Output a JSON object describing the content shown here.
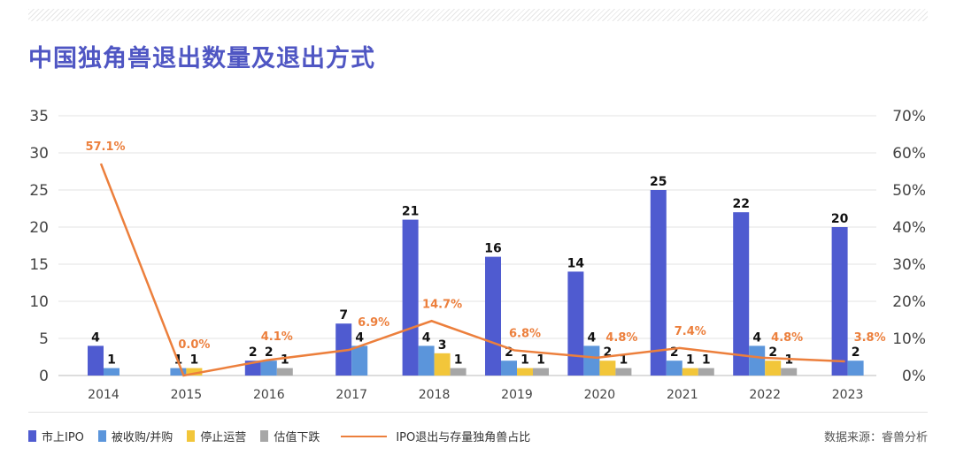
{
  "title": "中国独角兽退出数量及退出方式",
  "source": "数据来源：睿兽分析",
  "chart_data": {
    "type": "bar+line",
    "title": "中国独角兽退出数量及退出方式",
    "categories": [
      "2014",
      "2015",
      "2016",
      "2017",
      "2018",
      "2019",
      "2020",
      "2021",
      "2022",
      "2023"
    ],
    "series": [
      {
        "name": "市上IPO",
        "color": "#4f5bd0",
        "values": [
          4,
          0,
          2,
          7,
          21,
          16,
          14,
          25,
          22,
          20
        ]
      },
      {
        "name": "被收购/并购",
        "color": "#5b95db",
        "values": [
          1,
          1,
          2,
          4,
          4,
          2,
          4,
          2,
          4,
          2
        ]
      },
      {
        "name": "停止运营",
        "color": "#f2c63a",
        "values": [
          0,
          1,
          0,
          0,
          3,
          1,
          2,
          1,
          2,
          0
        ]
      },
      {
        "name": "估值下跌",
        "color": "#a6a6a6",
        "values": [
          0,
          0,
          1,
          0,
          1,
          1,
          1,
          1,
          1,
          0
        ]
      }
    ],
    "line": {
      "name": "IPO退出与存量独角兽占比",
      "color": "#ec7f3c",
      "values": [
        57.1,
        0.0,
        4.1,
        6.9,
        14.7,
        6.8,
        4.8,
        7.4,
        4.8,
        3.8
      ],
      "labels": [
        "57.1%",
        "0.0%",
        "4.1%",
        "6.9%",
        "14.7%",
        "6.8%",
        "4.8%",
        "7.4%",
        "4.8%",
        "3.8%"
      ]
    },
    "ylim": [
      0,
      35
    ],
    "yticks": [
      "0",
      "5",
      "10",
      "15",
      "20",
      "25",
      "30",
      "35"
    ],
    "y2lim": [
      0,
      70
    ],
    "y2ticks": [
      "0%",
      "10%",
      "20%",
      "30%",
      "40%",
      "50%",
      "60%",
      "70%"
    ],
    "grid": true,
    "legend": "bottom"
  }
}
